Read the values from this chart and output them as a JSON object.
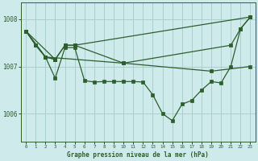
{
  "background_color": "#ceeaea",
  "grid_color": "#aacfcf",
  "line_color": "#2d5f2d",
  "title": "Graphe pression niveau de la mer (hPa)",
  "xlim": [
    -0.5,
    23.5
  ],
  "ylim": [
    1005.4,
    1008.35
  ],
  "yticks": [
    1006,
    1007,
    1008
  ],
  "xtick_labels": [
    "0",
    "1",
    "2",
    "3",
    "4",
    "5",
    "6",
    "7",
    "8",
    "9",
    "10",
    "11",
    "12",
    "13",
    "14",
    "15",
    "16",
    "17",
    "18",
    "19",
    "20",
    "21",
    "22",
    "23"
  ],
  "series": [
    {
      "x": [
        0,
        1,
        2,
        3,
        4,
        5,
        6,
        7,
        8,
        9,
        10,
        11,
        12,
        13,
        14,
        15,
        16,
        17,
        18,
        19,
        20,
        21,
        22,
        23
      ],
      "y": [
        1007.75,
        1007.45,
        1007.2,
        1006.75,
        1007.4,
        1007.4,
        1006.7,
        1006.67,
        1006.68,
        1006.68,
        1006.68,
        1006.68,
        1006.67,
        1006.4,
        1006.0,
        1005.85,
        1006.2,
        1006.28,
        1006.5,
        1006.68,
        1006.65,
        1007.0,
        1007.8,
        1008.05
      ]
    },
    {
      "x": [
        0,
        2,
        3,
        4,
        5,
        10,
        21,
        22,
        23
      ],
      "y": [
        1007.75,
        1007.2,
        1007.15,
        1007.45,
        1007.45,
        1007.07,
        1007.45,
        1007.8,
        1008.05
      ]
    },
    {
      "x": [
        0,
        2,
        10,
        19,
        23
      ],
      "y": [
        1007.75,
        1007.2,
        1007.07,
        1006.9,
        1007.0
      ]
    },
    {
      "x": [
        0,
        3,
        4,
        5,
        23
      ],
      "y": [
        1007.75,
        1007.15,
        1007.45,
        1007.45,
        1008.05
      ]
    },
    {
      "x": [
        0,
        1,
        2,
        3
      ],
      "y": [
        1007.75,
        1007.45,
        1007.2,
        1007.15
      ]
    }
  ]
}
